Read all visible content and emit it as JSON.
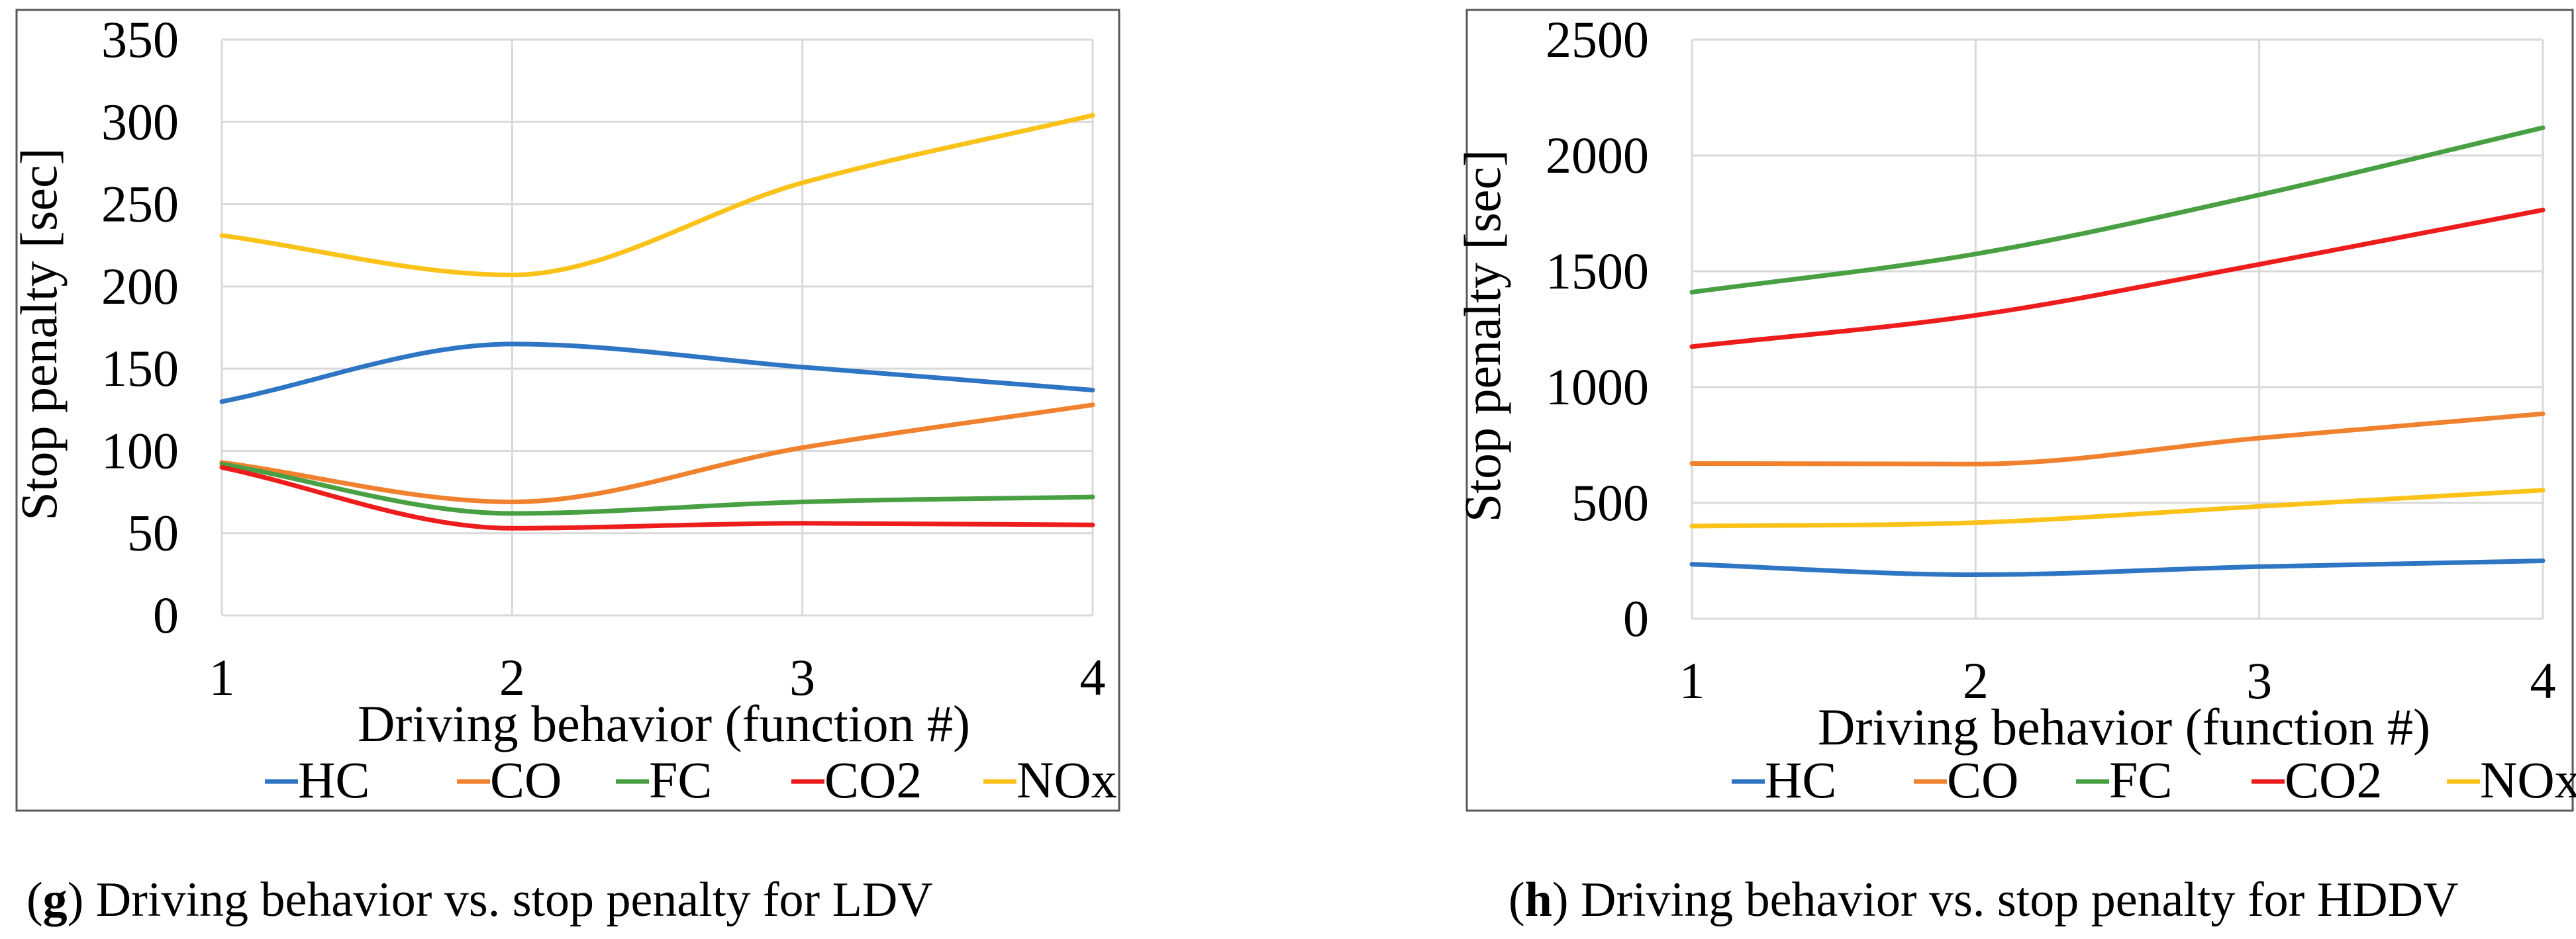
{
  "colors": {
    "HC": "#2e75c3",
    "CO": "#f0812f",
    "FC": "#48a043",
    "CO2": "#ee1d1d",
    "NOx": "#fbc21a",
    "grid": "#d9d9d9",
    "frame": "#595959"
  },
  "chart_data": [
    {
      "type": "line",
      "id": "g",
      "caption_letter": "g",
      "caption_text": ") Driving behavior vs. stop penalty for LDV",
      "caption_open": "(",
      "xlabel": "Driving behavior (function #)",
      "ylabel": "Stop penalty [sec]",
      "x": [
        1,
        2,
        3,
        4
      ],
      "xlim": [
        1,
        4
      ],
      "ylim": [
        0,
        350
      ],
      "yticks": [
        0,
        50,
        100,
        150,
        200,
        250,
        300,
        350
      ],
      "xticks": [
        1,
        2,
        3,
        4
      ],
      "grid": true,
      "legend": "bottom",
      "series": [
        {
          "name": "HC",
          "values": [
            130,
            165,
            151,
            137
          ]
        },
        {
          "name": "CO",
          "values": [
            93,
            69,
            102,
            128
          ]
        },
        {
          "name": "FC",
          "values": [
            92,
            62,
            69,
            72
          ]
        },
        {
          "name": "CO2",
          "values": [
            90,
            53,
            56,
            55
          ]
        },
        {
          "name": "NOx",
          "values": [
            231,
            207,
            263,
            304
          ]
        }
      ]
    },
    {
      "type": "line",
      "id": "h",
      "caption_letter": "h",
      "caption_text": ") Driving behavior vs. stop penalty for HDDV",
      "caption_open": "(",
      "xlabel": "Driving behavior (function #)",
      "ylabel": "Stop penalty [sec]",
      "x": [
        1,
        2,
        3,
        4
      ],
      "xlim": [
        1,
        4
      ],
      "ylim": [
        0,
        2500
      ],
      "yticks": [
        0,
        500,
        1000,
        1500,
        2000,
        2500
      ],
      "xticks": [
        1,
        2,
        3,
        4
      ],
      "grid": true,
      "legend": "bottom",
      "series": [
        {
          "name": "HC",
          "values": [
            235,
            190,
            225,
            250
          ]
        },
        {
          "name": "CO",
          "values": [
            670,
            668,
            780,
            885
          ]
        },
        {
          "name": "FC",
          "values": [
            1410,
            1575,
            1830,
            2120
          ]
        },
        {
          "name": "CO2",
          "values": [
            1175,
            1310,
            1530,
            1765
          ]
        },
        {
          "name": "NOx",
          "values": [
            400,
            415,
            485,
            555
          ]
        }
      ]
    }
  ]
}
